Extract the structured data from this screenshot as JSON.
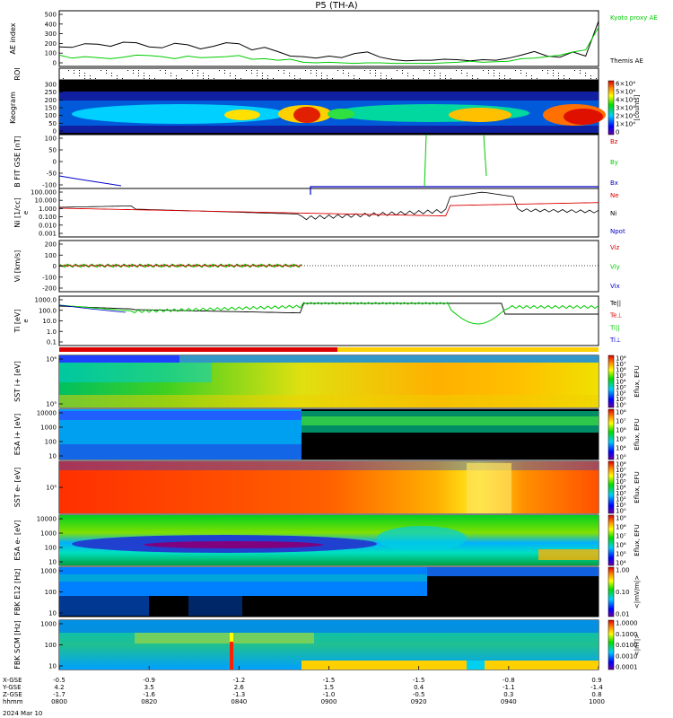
{
  "title": "P5 (TH-A)",
  "date": "2024 Mar 10",
  "colors": {
    "red": "#dd0000",
    "green": "#00cc00",
    "blue": "#0000cc",
    "black": "#000000"
  },
  "chart_data": [
    {
      "id": "ae",
      "type": "line",
      "ylabel": "AE index",
      "yticks": [
        "500",
        "400",
        "300",
        "200",
        "100",
        "0"
      ],
      "legend": [
        {
          "label": "Kyoto proxy AE",
          "color": "#00cc00"
        },
        {
          "label": "Themis AE",
          "color": "#000000"
        }
      ],
      "series": [
        {
          "name": "Themis AE",
          "color": "#000000",
          "y": [
            170,
            165,
            200,
            195,
            175,
            215,
            210,
            170,
            160,
            205,
            190,
            150,
            175,
            210,
            200,
            140,
            165,
            125,
            80,
            75,
            60,
            80,
            65,
            105,
            120,
            70,
            45,
            35,
            40,
            40,
            50,
            45,
            35,
            45,
            40,
            60,
            90,
            125,
            80,
            70,
            120,
            80,
            420
          ]
        },
        {
          "name": "Kyoto proxy AE",
          "color": "#00cc00",
          "y": [
            90,
            60,
            75,
            65,
            55,
            70,
            90,
            85,
            75,
            55,
            80,
            65,
            70,
            75,
            85,
            50,
            55,
            40,
            50,
            20,
            15,
            20,
            15,
            10,
            15,
            15,
            10,
            10,
            10,
            10,
            15,
            20,
            30,
            20,
            25,
            30,
            55,
            60,
            75,
            90,
            120,
            140,
            360
          ]
        }
      ]
    },
    {
      "id": "roi",
      "type": "scatter",
      "ylabel": "ROI"
    },
    {
      "id": "keogram",
      "type": "heatmap",
      "ylabel": "Keogram",
      "yticks": [
        "300",
        "250",
        "200",
        "150",
        "100",
        "50",
        "0"
      ],
      "colorbar": {
        "label": "[counts]",
        "ticks": [
          "6×10⁴",
          "5×10⁴",
          "4×10⁴",
          "3×10⁴",
          "2×10⁴",
          "1×10⁴",
          "0"
        ]
      }
    },
    {
      "id": "bfield",
      "type": "line",
      "ylabel": "B FIT GSE [nT]",
      "yticks": [
        "100",
        "50",
        "0",
        "-50",
        "-100"
      ],
      "legend": [
        {
          "label": "Bz",
          "color": "#dd0000"
        },
        {
          "label": "By",
          "color": "#00cc00"
        },
        {
          "label": "Bx",
          "color": "#0000cc"
        }
      ]
    },
    {
      "id": "density",
      "type": "line",
      "ylabel": "Ni [1/cc]",
      "sublabel": "e",
      "yticks": [
        "100.000",
        "10.000",
        "1.000",
        "0.100",
        "0.010",
        "0.001"
      ],
      "legend": [
        {
          "label": "Ne",
          "color": "#dd0000"
        },
        {
          "label": "Ni",
          "color": "#000000"
        },
        {
          "label": "Npot",
          "color": "#0000cc"
        }
      ]
    },
    {
      "id": "velocity",
      "type": "line",
      "ylabel": "Vi [km/s]",
      "yticks": [
        "200",
        "100",
        "0",
        "-100",
        "-200"
      ],
      "legend": [
        {
          "label": "Viz",
          "color": "#dd0000"
        },
        {
          "label": "Viy",
          "color": "#00cc00"
        },
        {
          "label": "Vix",
          "color": "#0000cc"
        }
      ]
    },
    {
      "id": "temperature",
      "type": "line",
      "ylabel": "Ti [eV]",
      "sublabel": "e",
      "yticks": [
        "1000.0",
        "100.0",
        "10.0",
        "1.0",
        "0.1"
      ],
      "legend": [
        {
          "label": "Te||",
          "color": "#000000"
        },
        {
          "label": "Te⊥",
          "color": "#dd0000"
        },
        {
          "label": "Ti||",
          "color": "#00cc00"
        },
        {
          "label": "Ti⊥",
          "color": "#0000cc"
        }
      ]
    },
    {
      "id": "sst_i",
      "type": "heatmap",
      "ylabel": "SST i+ [eV]",
      "yticks": [
        "10⁶",
        "10⁵"
      ],
      "colorbar": {
        "label": "Eflux, EFU",
        "ticks": [
          "10⁸",
          "10⁷",
          "10⁶",
          "10⁵",
          "10⁴",
          "10³",
          "10²",
          "10¹",
          "10⁰"
        ]
      }
    },
    {
      "id": "esa_i",
      "type": "heatmap",
      "ylabel": "ESA i+ [eV]",
      "yticks": [
        "10000",
        "1000",
        "100",
        "10"
      ],
      "colorbar": {
        "label": "Eflux, EFU",
        "ticks": [
          "10⁸",
          "10⁷",
          "10⁶",
          "10⁵",
          "10⁴",
          "10³"
        ]
      }
    },
    {
      "id": "sst_e",
      "type": "heatmap",
      "ylabel": "SST e- [eV]",
      "yticks": [
        "10⁵"
      ],
      "colorbar": {
        "label": "Eflux, EFU",
        "ticks": [
          "10⁸",
          "10⁷",
          "10⁶",
          "10⁵",
          "10⁴",
          "10³",
          "10²",
          "10¹",
          "10⁰"
        ]
      }
    },
    {
      "id": "esa_e",
      "type": "heatmap",
      "ylabel": "ESA e- [eV]",
      "yticks": [
        "10000",
        "1000",
        "100",
        "10"
      ],
      "colorbar": {
        "label": "Eflux, EFU",
        "ticks": [
          "10⁹",
          "10⁸",
          "10⁷",
          "10⁶",
          "10⁵",
          "10⁴"
        ]
      }
    },
    {
      "id": "fbk_e",
      "type": "heatmap",
      "ylabel": "FBK E12 [Hz]",
      "yticks": [
        "1000",
        "100",
        "10"
      ],
      "colorbar": {
        "label": "<|mV/m|>",
        "ticks": [
          "1.00",
          "0.10",
          "0.01"
        ]
      }
    },
    {
      "id": "fbk_b",
      "type": "heatmap",
      "ylabel": "FBK SCM [Hz]",
      "yticks": [
        "1000",
        "100",
        "10"
      ],
      "colorbar": {
        "label": "<|nT|>",
        "ticks": [
          "1.0000",
          "0.1000",
          "0.0100",
          "0.0010",
          "0.0001"
        ]
      }
    }
  ],
  "xaxis": {
    "rowlabels": [
      "X-GSE",
      "Y-GSE",
      "Z-GSE",
      "hhmm"
    ],
    "ticks": [
      {
        "x": "-0.5",
        "y": "4.2",
        "z": "-1.7",
        "t": "0800"
      },
      {
        "x": "-0.9",
        "y": "3.5",
        "z": "-1.6",
        "t": "0820"
      },
      {
        "x": "-1.2",
        "y": "2.6",
        "z": "-1.3",
        "t": "0840"
      },
      {
        "x": "-1.5",
        "y": "1.5",
        "z": "-1.0",
        "t": "0900"
      },
      {
        "x": "-1.5",
        "y": "0.4",
        "z": "-0.5",
        "t": "0920"
      },
      {
        "x": "-0.8",
        "y": "-1.1",
        "z": "0.3",
        "t": "0940"
      },
      {
        "x": "0.9",
        "y": "-1.4",
        "z": "0.8",
        "t": "1000"
      }
    ]
  }
}
